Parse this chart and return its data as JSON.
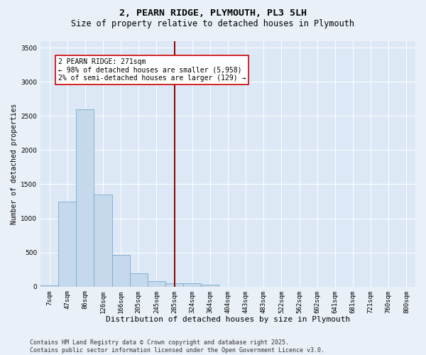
{
  "title": "2, PEARN RIDGE, PLYMOUTH, PL3 5LH",
  "subtitle": "Size of property relative to detached houses in Plymouth",
  "xlabel": "Distribution of detached houses by size in Plymouth",
  "ylabel": "Number of detached properties",
  "bar_categories": [
    "7sqm",
    "47sqm",
    "86sqm",
    "126sqm",
    "166sqm",
    "205sqm",
    "245sqm",
    "285sqm",
    "324sqm",
    "364sqm",
    "404sqm",
    "443sqm",
    "483sqm",
    "522sqm",
    "562sqm",
    "602sqm",
    "641sqm",
    "681sqm",
    "721sqm",
    "760sqm",
    "800sqm"
  ],
  "bar_values": [
    15,
    1250,
    2600,
    1350,
    460,
    190,
    85,
    50,
    50,
    30,
    0,
    0,
    0,
    0,
    0,
    0,
    0,
    0,
    0,
    0,
    0
  ],
  "bar_color": "#c6d9ec",
  "bar_edge_color": "#7aaac8",
  "vline_x_index": 7,
  "vline_color": "#8b0000",
  "annotation_text": "2 PEARN RIDGE: 271sqm\n← 98% of detached houses are smaller (5,958)\n2% of semi-detached houses are larger (129) →",
  "annotation_box_facecolor": "#ffffff",
  "annotation_box_edgecolor": "#cc0000",
  "ylim": [
    0,
    3600
  ],
  "yticks": [
    0,
    500,
    1000,
    1500,
    2000,
    2500,
    3000,
    3500
  ],
  "plot_bg_color": "#dce8f5",
  "fig_bg_color": "#eaf0f8",
  "footer_text": "Contains HM Land Registry data © Crown copyright and database right 2025.\nContains public sector information licensed under the Open Government Licence v3.0.",
  "title_fontsize": 9.5,
  "subtitle_fontsize": 8.5,
  "xlabel_fontsize": 8,
  "ylabel_fontsize": 7,
  "tick_fontsize": 6.5,
  "annotation_fontsize": 7,
  "footer_fontsize": 6
}
